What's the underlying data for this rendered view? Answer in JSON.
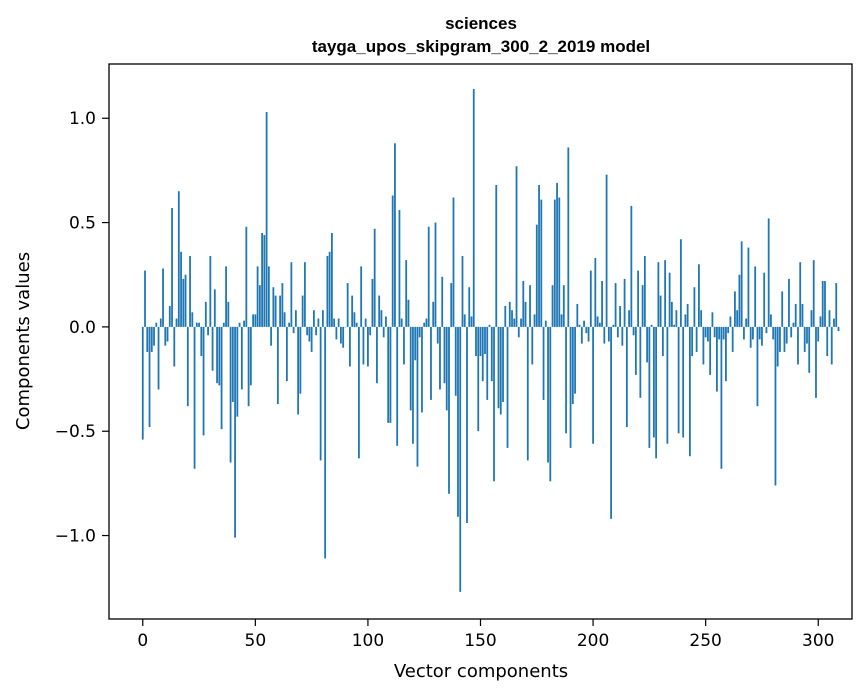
{
  "chart_data": {
    "type": "bar",
    "title": "sciences",
    "subtitle": "tayga_upos_skipgram_300_2_2019 model",
    "xlabel": "Vector components",
    "ylabel": "Components values",
    "xlim": [
      -15,
      315
    ],
    "ylim": [
      -1.4,
      1.26
    ],
    "xticks": [
      0,
      50,
      100,
      150,
      200,
      250,
      300
    ],
    "xtick_labels": [
      "0",
      "50",
      "100",
      "150",
      "200",
      "250",
      "300"
    ],
    "yticks": [
      -1.0,
      -0.5,
      0.0,
      0.5,
      1.0
    ],
    "ytick_labels": [
      "−1.0",
      "−0.5",
      "0.0",
      "0.5",
      "1.0"
    ],
    "bar_color": "#1f77b4",
    "bar_width": 0.8,
    "series": [
      {
        "name": "sciences",
        "x_start": 0,
        "values": [
          -0.54,
          0.27,
          -0.12,
          -0.48,
          -0.12,
          -0.09,
          0.02,
          -0.3,
          0.04,
          0.28,
          -0.09,
          -0.07,
          0.1,
          0.57,
          -0.19,
          0.04,
          0.65,
          0.36,
          0.23,
          0.25,
          -0.38,
          0.34,
          0.07,
          -0.68,
          0.02,
          0.02,
          -0.14,
          -0.52,
          0.12,
          -0.04,
          0.34,
          -0.21,
          0.18,
          -0.27,
          -0.28,
          -0.49,
          0.02,
          0.29,
          0.12,
          -0.65,
          -0.36,
          -1.01,
          -0.43,
          0.02,
          -0.3,
          0.03,
          0.48,
          -0.38,
          -0.28,
          0.06,
          0.06,
          0.29,
          0.2,
          0.45,
          0.44,
          1.03,
          0.29,
          -0.09,
          0.19,
          0.15,
          -0.37,
          0.15,
          0.21,
          0.07,
          -0.26,
          0.02,
          0.31,
          -0.03,
          0.08,
          -0.42,
          -0.32,
          0.15,
          0.31,
          -0.04,
          -0.07,
          -0.12,
          0.08,
          -0.04,
          0.04,
          -0.64,
          0.08,
          -1.11,
          0.34,
          0.36,
          0.45,
          0.04,
          -0.06,
          0.04,
          -0.08,
          -0.1,
          0.0,
          0.21,
          -0.19,
          0.15,
          0.07,
          0.02,
          -0.63,
          0.29,
          -0.18,
          0.04,
          -0.19,
          -0.04,
          0.23,
          0.47,
          -0.27,
          0.15,
          0.08,
          -0.05,
          0.05,
          -0.46,
          -0.46,
          0.63,
          0.88,
          -0.57,
          0.56,
          0.04,
          -0.18,
          0.32,
          0.13,
          -0.4,
          -0.56,
          -0.16,
          -0.67,
          -0.05,
          -0.41,
          0.02,
          0.04,
          0.48,
          -0.35,
          0.12,
          0.5,
          -0.08,
          -0.3,
          0.24,
          -0.27,
          -0.4,
          -0.8,
          0.21,
          0.62,
          -0.33,
          -0.91,
          -1.27,
          0.34,
          0.06,
          -0.94,
          0.19,
          0.05,
          1.14,
          -0.14,
          -0.5,
          -0.14,
          -0.26,
          -0.13,
          -0.35,
          0.01,
          -0.26,
          -0.74,
          0.68,
          -0.39,
          -0.42,
          -0.36,
          0.1,
          -0.58,
          0.12,
          0.08,
          0.04,
          0.77,
          -0.05,
          0.04,
          0.22,
          0.12,
          -0.64,
          0.2,
          -0.18,
          0.06,
          0.49,
          0.68,
          0.61,
          -0.35,
          0.03,
          -0.65,
          -0.74,
          0.2,
          0.61,
          0.69,
          0.62,
          0.06,
          0.2,
          -0.51,
          0.86,
          -0.58,
          -0.37,
          -0.32,
          0.11,
          0.01,
          -0.08,
          0.03,
          -0.03,
          -0.07,
          0.27,
          -0.56,
          0.33,
          0.05,
          0.02,
          0.22,
          -0.08,
          0.73,
          -0.07,
          -0.92,
          0.01,
          0.21,
          -0.05,
          0.1,
          -0.09,
          0.23,
          -0.48,
          0.08,
          0.58,
          -0.04,
          -0.23,
          0.27,
          -0.34,
          0.2,
          0.34,
          -0.17,
          -0.58,
          0.01,
          -0.53,
          -0.63,
          0.31,
          0.15,
          -0.14,
          0.32,
          -0.56,
          0.26,
          0.12,
          0.01,
          0.08,
          -0.51,
          0.42,
          -0.53,
          0.06,
          0.11,
          -0.62,
          -0.14,
          0.19,
          -0.12,
          0.3,
          0.08,
          -0.18,
          -0.05,
          -0.07,
          -0.23,
          0.07,
          -0.05,
          -0.31,
          -0.06,
          -0.68,
          -0.06,
          -0.26,
          -0.03,
          0.05,
          -0.12,
          0.17,
          0.08,
          0.25,
          0.41,
          -0.06,
          0.04,
          0.38,
          -0.1,
          -0.06,
          0.29,
          -0.38,
          -0.06,
          -0.09,
          0.26,
          -0.03,
          0.52,
          0.06,
          -0.06,
          -0.76,
          -0.19,
          -0.12,
          0.17,
          -0.12,
          -0.08,
          0.23,
          -0.05,
          0.02,
          0.11,
          -0.18,
          0.31,
          0.11,
          -0.12,
          -0.08,
          -0.22,
          0.08,
          0.32,
          -0.34,
          -0.07,
          0.05,
          0.22,
          0.22,
          -0.14,
          0.08,
          -0.18,
          0.04,
          0.21,
          -0.02
        ]
      }
    ]
  }
}
